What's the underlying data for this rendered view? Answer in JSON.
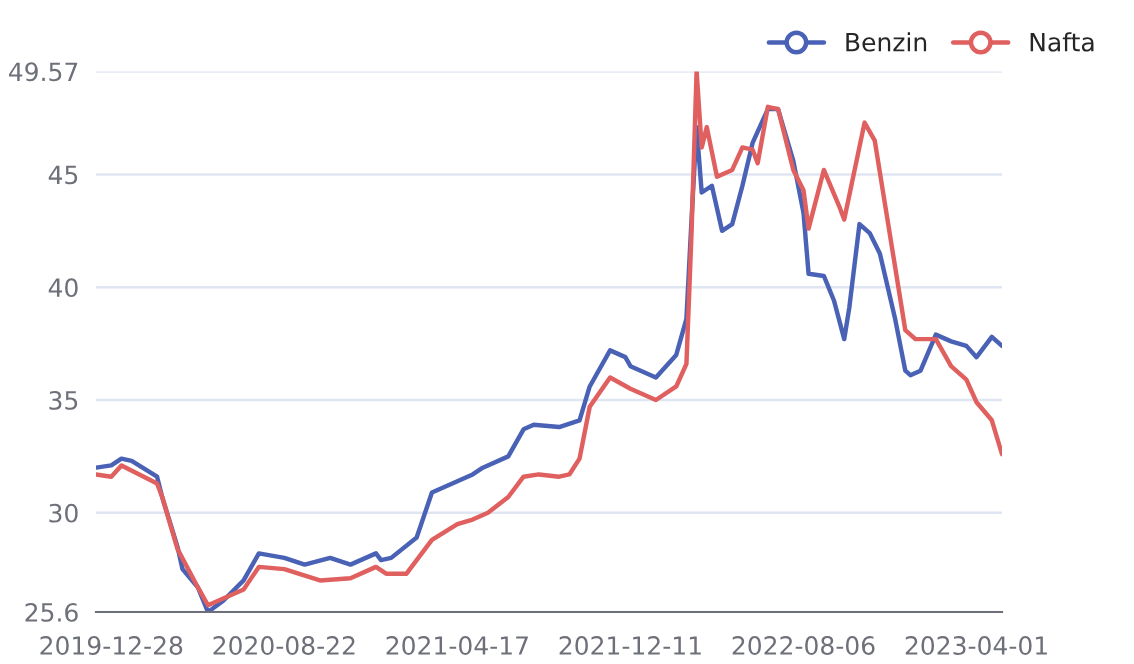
{
  "chart_data": {
    "type": "line",
    "xlim": [
      "2019-12-07",
      "2023-05-06"
    ],
    "xticks": [
      "2019-12-28",
      "2020-08-22",
      "2021-04-17",
      "2021-12-11",
      "2022-08-06",
      "2023-04-01"
    ],
    "ylim": [
      25.6,
      49.57
    ],
    "yticks": [
      25.6,
      30,
      35,
      40,
      45,
      49.57
    ],
    "grid": "y",
    "legend": "top right",
    "line_style": "solid",
    "series": [
      {
        "name": "Benzin",
        "color": "#4a62b5",
        "x": [
          "2019-12-07",
          "2019-12-28",
          "2020-01-11",
          "2020-01-25",
          "2020-02-29",
          "2020-03-07",
          "2020-03-28",
          "2020-04-04",
          "2020-04-25",
          "2020-05-09",
          "2020-05-30",
          "2020-06-27",
          "2020-07-18",
          "2020-08-22",
          "2020-09-19",
          "2020-10-24",
          "2020-11-21",
          "2020-12-26",
          "2021-01-02",
          "2021-01-16",
          "2021-02-20",
          "2021-03-13",
          "2021-04-17",
          "2021-05-08",
          "2021-05-22",
          "2021-06-26",
          "2021-07-17",
          "2021-07-31",
          "2021-09-04",
          "2021-10-02",
          "2021-10-16",
          "2021-11-13",
          "2021-12-04",
          "2021-12-11",
          "2022-01-15",
          "2022-02-12",
          "2022-02-26",
          "2022-03-05",
          "2022-03-12",
          "2022-03-19",
          "2022-04-02",
          "2022-04-16",
          "2022-04-30",
          "2022-05-14",
          "2022-05-28",
          "2022-06-18",
          "2022-07-02",
          "2022-07-23",
          "2022-08-06",
          "2022-08-13",
          "2022-09-03",
          "2022-09-17",
          "2022-10-01",
          "2022-10-08",
          "2022-10-22",
          "2022-11-05",
          "2022-11-19",
          "2022-12-10",
          "2022-12-24",
          "2022-12-31",
          "2023-01-14",
          "2023-02-04",
          "2023-02-25",
          "2023-03-18",
          "2023-04-01",
          "2023-04-22",
          "2023-05-06"
        ],
        "values": [
          32.0,
          32.1,
          32.4,
          32.3,
          31.6,
          30.7,
          28.5,
          27.5,
          26.7,
          25.6,
          26.1,
          27.0,
          28.2,
          28.0,
          27.7,
          28.0,
          27.7,
          28.2,
          27.9,
          28.0,
          28.9,
          30.9,
          31.4,
          31.7,
          32.0,
          32.5,
          33.7,
          33.9,
          33.8,
          34.1,
          35.6,
          37.2,
          36.9,
          36.5,
          36.0,
          37.0,
          38.6,
          43.0,
          47.1,
          44.2,
          44.5,
          42.5,
          42.8,
          44.5,
          46.4,
          47.9,
          47.9,
          45.6,
          43.3,
          40.6,
          40.5,
          39.4,
          37.7,
          39.1,
          42.8,
          42.4,
          41.5,
          38.6,
          36.3,
          36.1,
          36.3,
          37.9,
          37.6,
          37.4,
          36.9,
          37.8,
          37.4
        ]
      },
      {
        "name": "Nafta",
        "color": "#e05f5f",
        "x": [
          "2019-12-07",
          "2019-12-28",
          "2020-01-11",
          "2020-02-29",
          "2020-03-07",
          "2020-03-28",
          "2020-04-25",
          "2020-05-09",
          "2020-06-27",
          "2020-07-18",
          "2020-08-22",
          "2020-10-10",
          "2020-11-21",
          "2020-12-26",
          "2021-01-09",
          "2021-02-06",
          "2021-03-13",
          "2021-04-17",
          "2021-05-08",
          "2021-05-29",
          "2021-06-26",
          "2021-07-17",
          "2021-08-07",
          "2021-09-04",
          "2021-09-18",
          "2021-10-02",
          "2021-10-16",
          "2021-11-13",
          "2021-12-11",
          "2022-01-15",
          "2022-02-12",
          "2022-02-26",
          "2022-03-05",
          "2022-03-12",
          "2022-03-19",
          "2022-03-26",
          "2022-04-09",
          "2022-04-30",
          "2022-05-14",
          "2022-05-28",
          "2022-06-04",
          "2022-06-18",
          "2022-07-02",
          "2022-07-23",
          "2022-08-06",
          "2022-08-13",
          "2022-09-03",
          "2022-09-24",
          "2022-10-01",
          "2022-10-29",
          "2022-11-12",
          "2022-12-10",
          "2022-12-24",
          "2023-01-07",
          "2023-02-04",
          "2023-02-25",
          "2023-03-18",
          "2023-04-01",
          "2023-04-22",
          "2023-05-06"
        ],
        "values": [
          31.7,
          31.6,
          32.1,
          31.3,
          30.7,
          28.4,
          26.7,
          25.9,
          26.6,
          27.6,
          27.5,
          27.0,
          27.1,
          27.6,
          27.3,
          27.3,
          28.8,
          29.5,
          29.7,
          30.0,
          30.7,
          31.6,
          31.7,
          31.6,
          31.7,
          32.4,
          34.7,
          36.0,
          35.5,
          35.0,
          35.6,
          36.6,
          42.4,
          49.57,
          46.2,
          47.1,
          44.9,
          45.2,
          46.2,
          46.1,
          45.5,
          48.0,
          47.9,
          45.2,
          44.3,
          42.6,
          45.2,
          43.6,
          43.0,
          47.3,
          46.5,
          40.9,
          38.1,
          37.7,
          37.7,
          36.5,
          35.9,
          34.9,
          34.1,
          32.6
        ]
      }
    ]
  }
}
